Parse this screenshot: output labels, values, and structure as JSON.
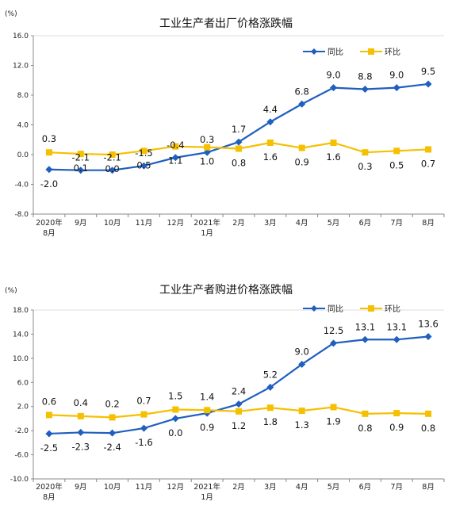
{
  "chart_data": [
    {
      "type": "line",
      "title": "工业生产者出厂价格涨跌幅",
      "unit_label": "(%)",
      "categories": [
        [
          "2020年",
          "8月"
        ],
        [
          "9月"
        ],
        [
          "10月"
        ],
        [
          "11月"
        ],
        [
          "12月"
        ],
        [
          "2021年",
          "1月"
        ],
        [
          "2月"
        ],
        [
          "3月"
        ],
        [
          "4月"
        ],
        [
          "5月"
        ],
        [
          "6月"
        ],
        [
          "7月"
        ],
        [
          "8月"
        ]
      ],
      "ylim": [
        -8.0,
        16.0
      ],
      "yticks": [
        "-8.0",
        "-4.0",
        "0.0",
        "4.0",
        "8.0",
        "12.0",
        "16.0"
      ],
      "legend_position": "top-right",
      "series": [
        {
          "name": "同比",
          "color": "#1f5fbf",
          "marker": "diamond",
          "values": [
            -2.0,
            -2.1,
            -2.1,
            -1.5,
            -0.4,
            0.3,
            1.7,
            4.4,
            6.8,
            9.0,
            8.8,
            9.0,
            9.5
          ],
          "labels": [
            "-2.0",
            "-2.1",
            "-2.1",
            "-1.5",
            "-0.4",
            "0.3",
            "1.7",
            "4.4",
            "6.8",
            "9.0",
            "8.8",
            "9.0",
            "9.5"
          ]
        },
        {
          "name": "环比",
          "color": "#f5c000",
          "marker": "square",
          "values": [
            0.3,
            0.1,
            0.0,
            0.5,
            1.1,
            1.0,
            0.8,
            1.6,
            0.9,
            1.6,
            0.3,
            0.5,
            0.7
          ],
          "labels": [
            "0.3",
            "0.1",
            "0.0",
            "0.5",
            "1.1",
            "1.0",
            "0.8",
            "1.6",
            "0.9",
            "1.6",
            "0.3",
            "0.5",
            "0.7"
          ]
        }
      ]
    },
    {
      "type": "line",
      "title": "工业生产者购进价格涨跌幅",
      "unit_label": "(%)",
      "categories": [
        [
          "2020年",
          "8月"
        ],
        [
          "9月"
        ],
        [
          "10月"
        ],
        [
          "11月"
        ],
        [
          "12月"
        ],
        [
          "2021年",
          "1月"
        ],
        [
          "2月"
        ],
        [
          "3月"
        ],
        [
          "4月"
        ],
        [
          "5月"
        ],
        [
          "6月"
        ],
        [
          "7月"
        ],
        [
          "8月"
        ]
      ],
      "ylim": [
        -10.0,
        18.0
      ],
      "yticks": [
        "-10.0",
        "-6.0",
        "-2.0",
        "2.0",
        "6.0",
        "10.0",
        "14.0",
        "18.0"
      ],
      "legend_position": "top-right",
      "series": [
        {
          "name": "同比",
          "color": "#1f5fbf",
          "marker": "diamond",
          "values": [
            -2.5,
            -2.3,
            -2.4,
            -1.6,
            0.0,
            0.9,
            2.4,
            5.2,
            9.0,
            12.5,
            13.1,
            13.1,
            13.6
          ],
          "labels": [
            "-2.5",
            "-2.3",
            "-2.4",
            "-1.6",
            "0.0",
            "0.9",
            "2.4",
            "5.2",
            "9.0",
            "12.5",
            "13.1",
            "13.1",
            "13.6"
          ]
        },
        {
          "name": "环比",
          "color": "#f5c000",
          "marker": "square",
          "values": [
            0.6,
            0.4,
            0.2,
            0.7,
            1.5,
            1.4,
            1.2,
            1.8,
            1.3,
            1.9,
            0.8,
            0.9,
            0.8
          ],
          "labels": [
            "0.6",
            "0.4",
            "0.2",
            "0.7",
            "1.5",
            "1.4",
            "1.2",
            "1.8",
            "1.3",
            "1.9",
            "0.8",
            "0.9",
            "0.8"
          ]
        }
      ]
    }
  ]
}
